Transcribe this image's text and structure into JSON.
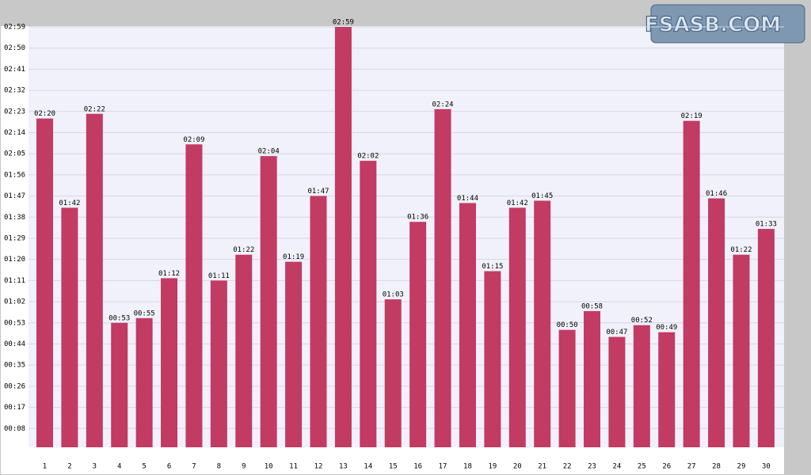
{
  "chart_data": {
    "type": "bar",
    "logo": "FSASB.COM",
    "categories": [
      "1",
      "2",
      "3",
      "4",
      "5",
      "6",
      "7",
      "8",
      "9",
      "10",
      "11",
      "12",
      "13",
      "14",
      "15",
      "16",
      "17",
      "18",
      "19",
      "20",
      "21",
      "22",
      "23",
      "24",
      "25",
      "26",
      "27",
      "28",
      "29",
      "30"
    ],
    "values": [
      140,
      102,
      142,
      53,
      55,
      72,
      129,
      71,
      82,
      124,
      79,
      107,
      179,
      122,
      63,
      96,
      144,
      104,
      75,
      102,
      105,
      50,
      58,
      47,
      52,
      49,
      139,
      106,
      82,
      93
    ],
    "value_labels": [
      "02:20",
      "01:42",
      "02:22",
      "00:53",
      "00:55",
      "01:12",
      "02:09",
      "01:11",
      "01:22",
      "02:04",
      "01:19",
      "01:47",
      "02:59",
      "02:02",
      "01:03",
      "01:36",
      "02:24",
      "01:44",
      "01:15",
      "01:42",
      "01:45",
      "00:50",
      "00:58",
      "00:47",
      "00:52",
      "00:49",
      "02:19",
      "01:46",
      "01:22",
      "01:33"
    ],
    "color": "#c23b62",
    "ylim": [
      0,
      179
    ],
    "yticks": [
      {
        "value": 8,
        "label": "00:08"
      },
      {
        "value": 17,
        "label": "00:17"
      },
      {
        "value": 26,
        "label": "00:26"
      },
      {
        "value": 35,
        "label": "00:35"
      },
      {
        "value": 44,
        "label": "00:44"
      },
      {
        "value": 53,
        "label": "00:53"
      },
      {
        "value": 62,
        "label": "01:02"
      },
      {
        "value": 71,
        "label": "01:11"
      },
      {
        "value": 80,
        "label": "01:20"
      },
      {
        "value": 89,
        "label": "01:29"
      },
      {
        "value": 98,
        "label": "01:38"
      },
      {
        "value": 107,
        "label": "01:47"
      },
      {
        "value": 116,
        "label": "01:56"
      },
      {
        "value": 125,
        "label": "02:05"
      },
      {
        "value": 134,
        "label": "02:14"
      },
      {
        "value": 143,
        "label": "02:23"
      },
      {
        "value": 152,
        "label": "02:32"
      },
      {
        "value": 161,
        "label": "02:41"
      },
      {
        "value": 170,
        "label": "02:50"
      },
      {
        "value": 179,
        "label": "02:59"
      }
    ],
    "grid": true
  }
}
